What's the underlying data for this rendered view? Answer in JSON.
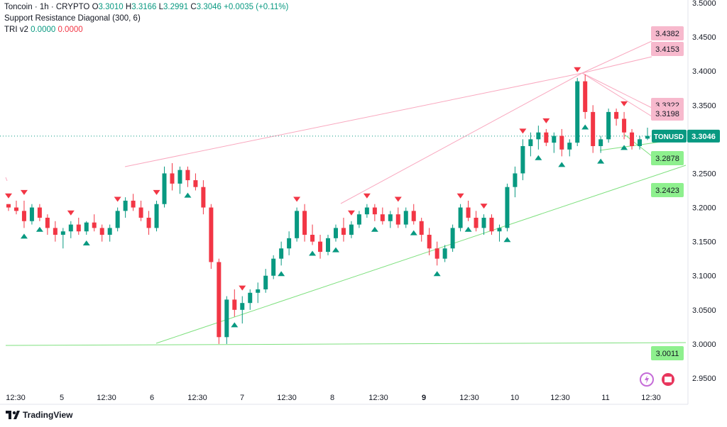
{
  "legend": {
    "symbol": "Toncoin · 1h · CRYPTO",
    "open_label": "O",
    "open": "3.3010",
    "high_label": "H",
    "high": "3.3166",
    "low_label": "L",
    "low": "3.2991",
    "close_label": "C",
    "close": "3.3046",
    "change": "+0.0035 (+0.11%)",
    "indicator1": "Support Resistance Diagonal (300, 6)",
    "indicator2_name": "TRI v2",
    "indicator2_a": "0.0000",
    "indicator2_b": "0.0000"
  },
  "branding": {
    "logo_text": "TradingView"
  },
  "colors": {
    "up": "#089981",
    "down": "#f23645",
    "resist": "#f9a8bf",
    "support": "#7ee07e",
    "resist_tag": "#f7b9cd",
    "support_tag": "#8ef08e",
    "current_tag": "#089981"
  },
  "chart_data": {
    "type": "candlestick",
    "symbol": "TONUSD",
    "interval": "1h",
    "current_price": 3.3046,
    "y_axis": {
      "min": 2.95,
      "max": 3.5,
      "ticks": [
        "3.5000",
        "3.4500",
        "3.4000",
        "3.3500",
        "3.3000",
        "3.2500",
        "3.2000",
        "3.1500",
        "3.1000",
        "3.0500",
        "3.0000",
        "2.9500"
      ]
    },
    "x_ticks": [
      "12:30",
      "5",
      "12:30",
      "6",
      "12:30",
      "7",
      "12:30",
      "8",
      "12:30",
      "9",
      "12:30",
      "10",
      "12:30",
      "11",
      "12:30"
    ],
    "current_tag": {
      "label": "TONUSD",
      "value": "3.3046"
    },
    "resistance_levels": [
      "3.4382",
      "3.4153",
      "3.3322",
      "3.3198"
    ],
    "support_levels": [
      "3.2878",
      "3.2423",
      "3.0011"
    ],
    "candles_approx": [
      [
        3.205,
        3.205,
        3.195,
        3.2
      ],
      [
        3.2,
        3.21,
        3.19,
        3.195
      ],
      [
        3.195,
        3.21,
        3.17,
        3.18
      ],
      [
        3.18,
        3.205,
        3.175,
        3.2
      ],
      [
        3.2,
        3.205,
        3.18,
        3.185
      ],
      [
        3.185,
        3.19,
        3.16,
        3.17
      ],
      [
        3.17,
        3.18,
        3.15,
        3.16
      ],
      [
        3.16,
        3.17,
        3.14,
        3.165
      ],
      [
        3.165,
        3.18,
        3.155,
        3.175
      ],
      [
        3.175,
        3.185,
        3.16,
        3.165
      ],
      [
        3.165,
        3.18,
        3.16,
        3.178
      ],
      [
        3.178,
        3.19,
        3.165,
        3.17
      ],
      [
        3.17,
        3.175,
        3.15,
        3.16
      ],
      [
        3.16,
        3.175,
        3.15,
        3.17
      ],
      [
        3.17,
        3.2,
        3.165,
        3.195
      ],
      [
        3.195,
        3.215,
        3.185,
        3.21
      ],
      [
        3.21,
        3.22,
        3.195,
        3.2
      ],
      [
        3.2,
        3.21,
        3.18,
        3.185
      ],
      [
        3.185,
        3.195,
        3.16,
        3.17
      ],
      [
        3.17,
        3.21,
        3.165,
        3.205
      ],
      [
        3.205,
        3.26,
        3.2,
        3.25
      ],
      [
        3.25,
        3.265,
        3.225,
        3.235
      ],
      [
        3.235,
        3.26,
        3.22,
        3.255
      ],
      [
        3.255,
        3.26,
        3.23,
        3.24
      ],
      [
        3.24,
        3.25,
        3.225,
        3.23
      ],
      [
        3.23,
        3.24,
        3.19,
        3.2
      ],
      [
        3.2,
        3.205,
        3.11,
        3.12
      ],
      [
        3.12,
        3.125,
        3.0,
        3.01
      ],
      [
        3.01,
        3.07,
        3.0,
        3.065
      ],
      [
        3.065,
        3.08,
        3.04,
        3.05
      ],
      [
        3.05,
        3.07,
        3.03,
        3.06
      ],
      [
        3.06,
        3.08,
        3.05,
        3.075
      ],
      [
        3.075,
        3.09,
        3.06,
        3.08
      ],
      [
        3.08,
        3.11,
        3.075,
        3.1
      ],
      [
        3.1,
        3.13,
        3.095,
        3.125
      ],
      [
        3.125,
        3.15,
        3.115,
        3.14
      ],
      [
        3.14,
        3.165,
        3.13,
        3.155
      ],
      [
        3.155,
        3.2,
        3.15,
        3.195
      ],
      [
        3.195,
        3.205,
        3.15,
        3.16
      ],
      [
        3.16,
        3.175,
        3.145,
        3.15
      ],
      [
        3.15,
        3.16,
        3.125,
        3.135
      ],
      [
        3.135,
        3.16,
        3.13,
        3.155
      ],
      [
        3.155,
        3.175,
        3.15,
        3.17
      ],
      [
        3.17,
        3.185,
        3.15,
        3.16
      ],
      [
        3.16,
        3.18,
        3.155,
        3.175
      ],
      [
        3.175,
        3.195,
        3.17,
        3.19
      ],
      [
        3.19,
        3.205,
        3.185,
        3.2
      ],
      [
        3.2,
        3.205,
        3.18,
        3.19
      ],
      [
        3.19,
        3.2,
        3.175,
        3.18
      ],
      [
        3.18,
        3.195,
        3.17,
        3.19
      ],
      [
        3.19,
        3.2,
        3.17,
        3.175
      ],
      [
        3.175,
        3.2,
        3.17,
        3.195
      ],
      [
        3.195,
        3.205,
        3.175,
        3.18
      ],
      [
        3.18,
        3.185,
        3.15,
        3.16
      ],
      [
        3.16,
        3.17,
        3.13,
        3.14
      ],
      [
        3.14,
        3.15,
        3.115,
        3.125
      ],
      [
        3.125,
        3.145,
        3.12,
        3.14
      ],
      [
        3.14,
        3.175,
        3.135,
        3.17
      ],
      [
        3.17,
        3.205,
        3.165,
        3.2
      ],
      [
        3.2,
        3.21,
        3.18,
        3.185
      ],
      [
        3.185,
        3.195,
        3.165,
        3.17
      ],
      [
        3.17,
        3.19,
        3.16,
        3.185
      ],
      [
        3.185,
        3.19,
        3.16,
        3.165
      ],
      [
        3.165,
        3.175,
        3.15,
        3.17
      ],
      [
        3.17,
        3.235,
        3.165,
        3.23
      ],
      [
        3.23,
        3.26,
        3.215,
        3.25
      ],
      [
        3.25,
        3.3,
        3.24,
        3.29
      ],
      [
        3.29,
        3.31,
        3.275,
        3.3
      ],
      [
        3.3,
        3.32,
        3.285,
        3.31
      ],
      [
        3.31,
        3.315,
        3.29,
        3.295
      ],
      [
        3.295,
        3.31,
        3.28,
        3.305
      ],
      [
        3.305,
        3.315,
        3.275,
        3.285
      ],
      [
        3.285,
        3.3,
        3.275,
        3.295
      ],
      [
        3.295,
        3.39,
        3.29,
        3.385
      ],
      [
        3.385,
        3.395,
        3.33,
        3.34
      ],
      [
        3.34,
        3.35,
        3.28,
        3.29
      ],
      [
        3.29,
        3.305,
        3.28,
        3.3
      ],
      [
        3.3,
        3.345,
        3.295,
        3.34
      ],
      [
        3.34,
        3.345,
        3.32,
        3.33
      ],
      [
        3.33,
        3.34,
        3.3,
        3.31
      ],
      [
        3.31,
        3.315,
        3.285,
        3.29
      ],
      [
        3.29,
        3.305,
        3.285,
        3.3
      ],
      [
        3.301,
        3.317,
        3.299,
        3.305
      ]
    ]
  }
}
